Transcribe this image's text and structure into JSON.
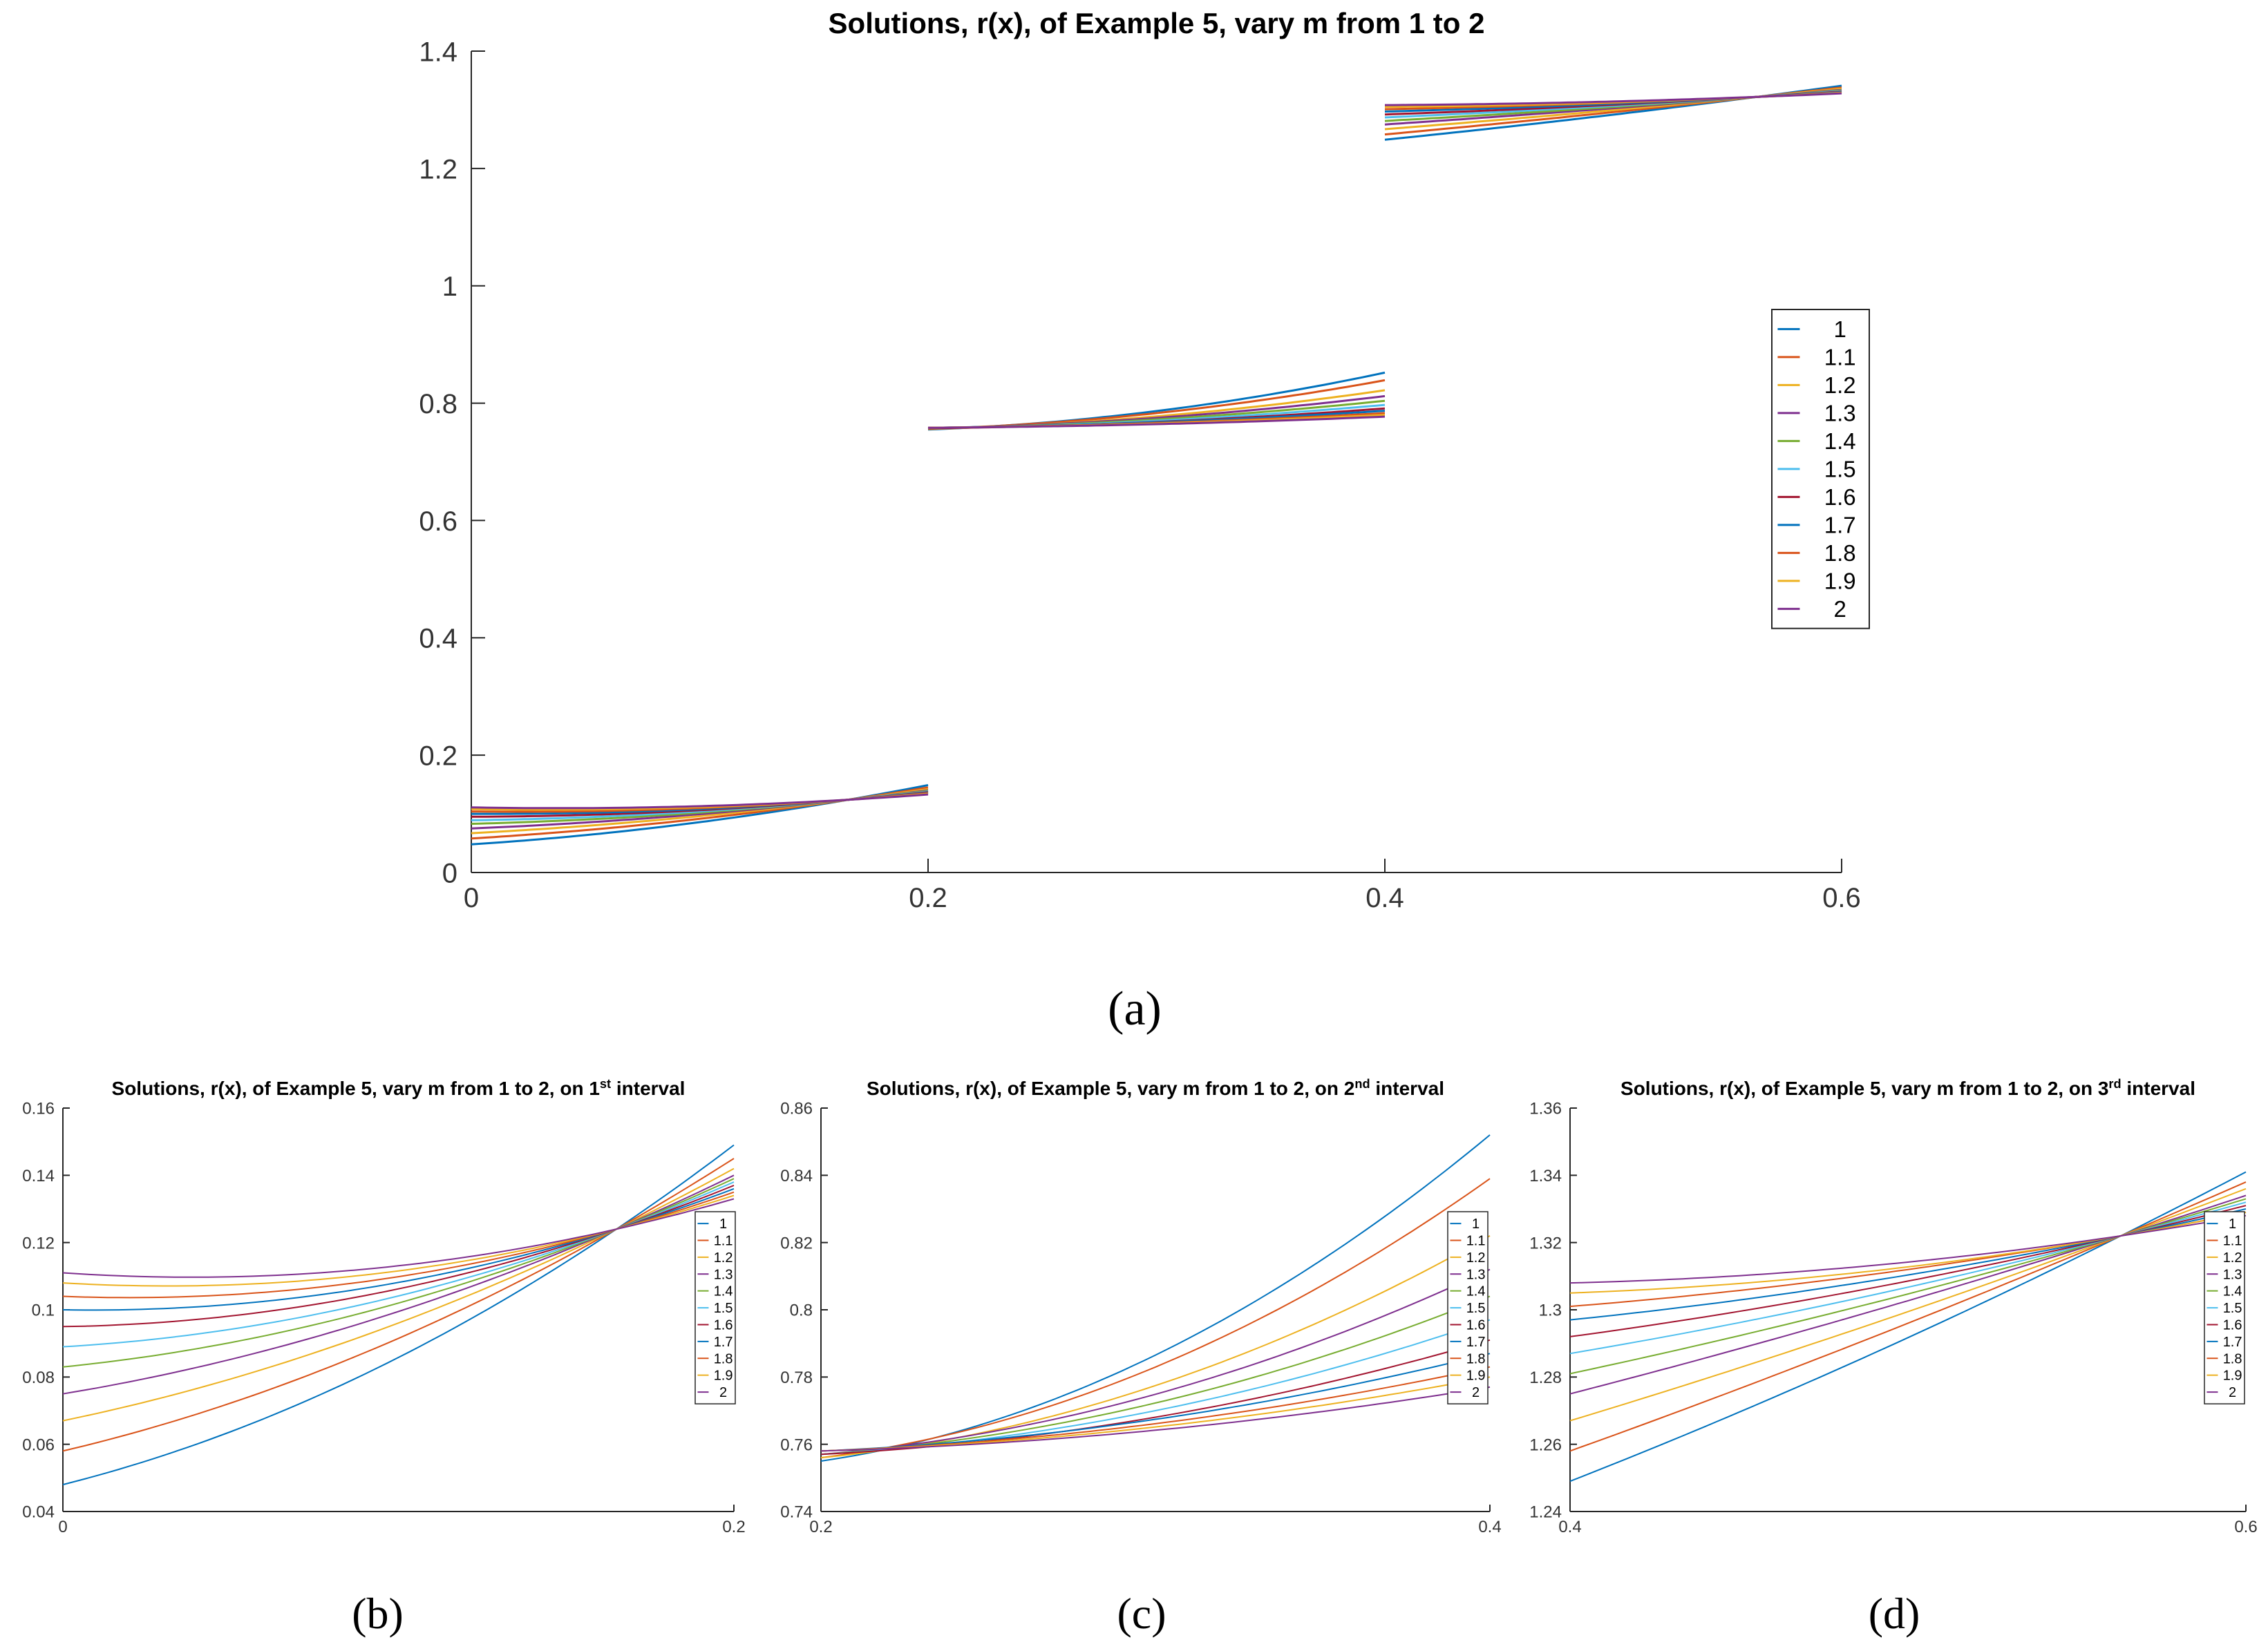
{
  "series_names": [
    "1",
    "1.1",
    "1.2",
    "1.3",
    "1.4",
    "1.5",
    "1.6",
    "1.7",
    "1.8",
    "1.9",
    "2"
  ],
  "colors": [
    "#0072BD",
    "#D95319",
    "#EDB120",
    "#7E2F8E",
    "#77AC30",
    "#4DBEEE",
    "#A2142F",
    "#0072BD",
    "#D95319",
    "#EDB120",
    "#7E2F8E"
  ],
  "chart_data": [
    {
      "id": "a",
      "type": "line",
      "title": "Solutions, r(x), of Example 5, vary m from 1 to 2",
      "caption": "(a)",
      "xlim": [
        0,
        0.6
      ],
      "ylim": [
        0,
        1.4
      ],
      "xticks": [
        "0",
        "0.2",
        "0.4",
        "0.6"
      ],
      "yticks": [
        "0",
        "0.2",
        "0.4",
        "0.6",
        "0.8",
        "1",
        "1.2",
        "1.4"
      ],
      "legend_position": "right",
      "segments": [
        {
          "x": [
            0,
            0.2
          ],
          "start": [
            0.048,
            0.058,
            0.067,
            0.075,
            0.083,
            0.089,
            0.095,
            0.1,
            0.104,
            0.108,
            0.111
          ],
          "end": [
            0.149,
            0.145,
            0.142,
            0.14,
            0.139,
            0.138,
            0.137,
            0.136,
            0.135,
            0.134,
            0.133
          ],
          "cross": [
            0.165,
            0.124
          ]
        },
        {
          "x": [
            0.2,
            0.4
          ],
          "start": [
            0.755,
            0.756,
            0.756,
            0.757,
            0.757,
            0.757,
            0.757,
            0.758,
            0.758,
            0.758,
            0.758
          ],
          "end": [
            0.852,
            0.839,
            0.822,
            0.812,
            0.804,
            0.797,
            0.791,
            0.787,
            0.783,
            0.78,
            0.777
          ],
          "cross": null
        },
        {
          "x": [
            0.4,
            0.6
          ],
          "start": [
            1.249,
            1.258,
            1.267,
            1.275,
            1.281,
            1.287,
            1.292,
            1.297,
            1.301,
            1.305,
            1.308
          ],
          "end": [
            1.341,
            1.338,
            1.336,
            1.334,
            1.333,
            1.332,
            1.331,
            1.33,
            1.329,
            1.329,
            1.328
          ],
          "cross": [
            0.563,
            1.322
          ]
        }
      ]
    },
    {
      "id": "b",
      "type": "line",
      "title": "Solutions, r(x), of Example 5, vary m from 1 to 2, on 1",
      "title_sup": "st",
      "title_end": " interval",
      "caption": "(b)",
      "xlim": [
        0,
        0.2
      ],
      "ylim": [
        0.04,
        0.16
      ],
      "xticks": [
        "0",
        "0.2"
      ],
      "yticks": [
        "0.04",
        "0.06",
        "0.08",
        "0.1",
        "0.12",
        "0.14",
        "0.16"
      ],
      "legend_position": "right",
      "segments": [
        {
          "x": [
            0,
            0.2
          ],
          "start": [
            0.048,
            0.058,
            0.067,
            0.075,
            0.083,
            0.089,
            0.095,
            0.1,
            0.104,
            0.108,
            0.111
          ],
          "end": [
            0.149,
            0.145,
            0.142,
            0.14,
            0.139,
            0.138,
            0.137,
            0.136,
            0.135,
            0.134,
            0.133
          ],
          "cross": [
            0.165,
            0.124
          ]
        }
      ]
    },
    {
      "id": "c",
      "type": "line",
      "title": "Solutions, r(x), of Example 5, vary m from 1 to 2, on 2",
      "title_sup": "nd",
      "title_end": " interval",
      "caption": "(c)",
      "xlim": [
        0.2,
        0.4
      ],
      "ylim": [
        0.74,
        0.86
      ],
      "xticks": [
        "0.2",
        "0.4"
      ],
      "yticks": [
        "0.74",
        "0.76",
        "0.78",
        "0.8",
        "0.82",
        "0.84",
        "0.86"
      ],
      "legend_position": "right",
      "segments": [
        {
          "x": [
            0.2,
            0.4
          ],
          "start": [
            0.755,
            0.756,
            0.756,
            0.757,
            0.757,
            0.757,
            0.757,
            0.758,
            0.758,
            0.758,
            0.758
          ],
          "end": [
            0.852,
            0.839,
            0.822,
            0.812,
            0.804,
            0.797,
            0.791,
            0.787,
            0.783,
            0.78,
            0.777
          ],
          "cross": null
        }
      ]
    },
    {
      "id": "d",
      "type": "line",
      "title": "Solutions, r(x), of Example 5, vary m from 1 to 2, on 3",
      "title_sup": "rd",
      "title_end": " interval",
      "caption": "(d)",
      "xlim": [
        0.4,
        0.6
      ],
      "ylim": [
        1.24,
        1.36
      ],
      "xticks": [
        "0.4",
        "0.6"
      ],
      "yticks": [
        "1.24",
        "1.26",
        "1.28",
        "1.3",
        "1.32",
        "1.34",
        "1.36"
      ],
      "legend_position": "right",
      "segments": [
        {
          "x": [
            0.4,
            0.6
          ],
          "start": [
            1.249,
            1.258,
            1.267,
            1.275,
            1.281,
            1.287,
            1.292,
            1.297,
            1.301,
            1.305,
            1.308
          ],
          "end": [
            1.341,
            1.338,
            1.336,
            1.334,
            1.333,
            1.332,
            1.331,
            1.33,
            1.329,
            1.329,
            1.328
          ],
          "cross": [
            0.563,
            1.322
          ]
        }
      ]
    }
  ]
}
